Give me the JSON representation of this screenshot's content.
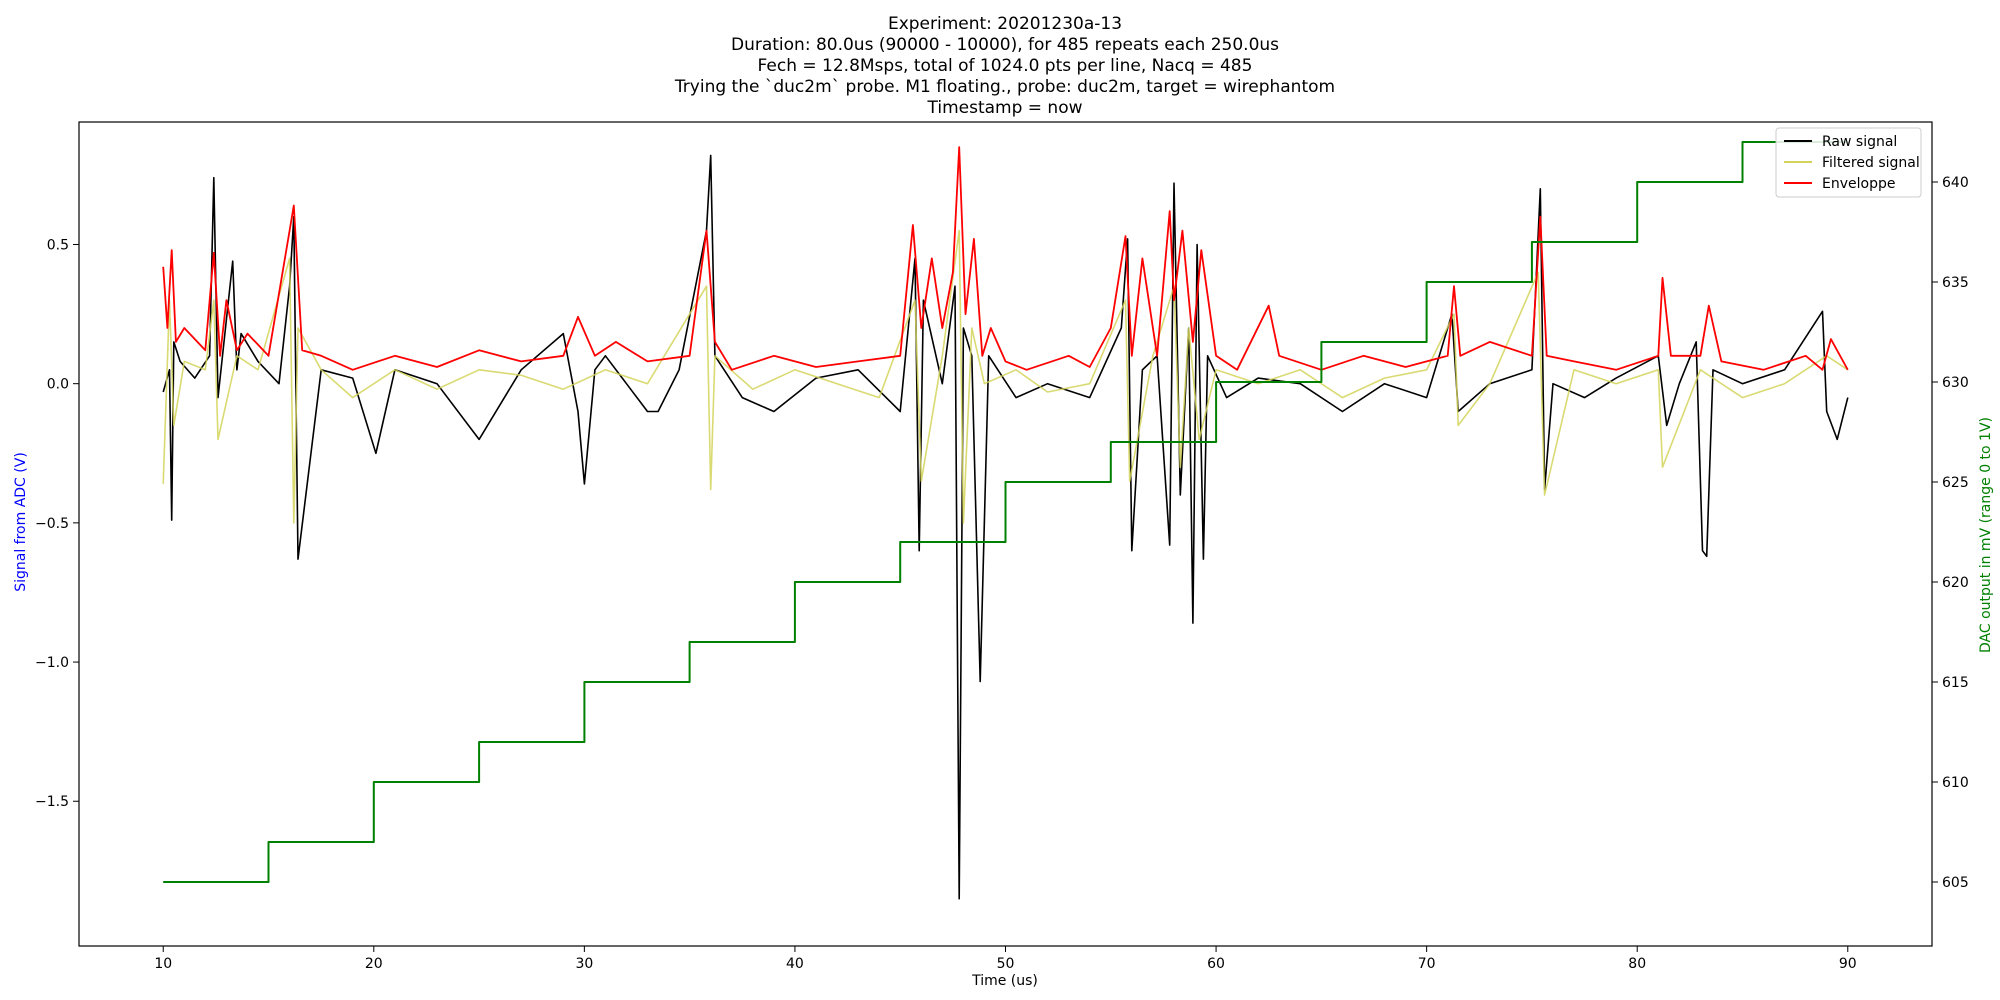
{
  "chart_data": {
    "type": "line",
    "title_lines": [
      "Experiment: 20201230a-13",
      "Duration: 80.0us (90000 - 10000), for 485 repeats each 250.0us",
      "Fech = 12.8Msps, total of 1024.0 pts per line, Nacq = 485",
      "Trying the `duc2m` probe. M1 floating., probe: duc2m, target = wirephantom",
      "Timestamp = now"
    ],
    "xlabel": "Time (us)",
    "ylabel": "Signal from ADC (V)",
    "ylabel_right": "DAC output in mV (range 0 to 1V)",
    "xlim": [
      6,
      94
    ],
    "ylim": [
      -2.02,
      0.94
    ],
    "ylim_right": [
      601.8,
      643.0
    ],
    "x_ticks": [
      10,
      20,
      30,
      40,
      50,
      60,
      70,
      80,
      90
    ],
    "y_ticks": [
      -1.5,
      -1.0,
      -0.5,
      0.0,
      0.5
    ],
    "y_tick_labels": [
      "−1.5",
      "−1.0",
      "−0.5",
      "0.0",
      "0.5"
    ],
    "y_right_ticks": [
      605,
      610,
      615,
      620,
      625,
      630,
      635,
      640
    ],
    "legend_position": "top-right",
    "colors": {
      "raw": "#000000",
      "filtered": "#d4d35a",
      "envelope": "#ff0000",
      "dac": "#008000",
      "left_label": "#0000ff",
      "right_label": "#008000"
    },
    "series": [
      {
        "name": "Raw signal",
        "axis": "left",
        "x": [
          10.0,
          10.3,
          10.4,
          10.5,
          10.8,
          11.5,
          12.2,
          12.4,
          12.6,
          13.3,
          13.5,
          13.7,
          14.5,
          15.5,
          16.0,
          16.2,
          16.4,
          17.5,
          19.0,
          20.1,
          21.0,
          23.0,
          25.0,
          27.0,
          29.0,
          29.7,
          30.0,
          30.5,
          31.0,
          32.0,
          33.0,
          33.5,
          34.5,
          35.8,
          36.0,
          36.2,
          37.5,
          39.0,
          41.0,
          43.0,
          45.0,
          45.7,
          45.9,
          46.1,
          47.0,
          47.6,
          47.8,
          48.0,
          48.4,
          48.8,
          49.2,
          50.5,
          52.0,
          54.0,
          55.5,
          55.8,
          56.0,
          56.5,
          57.2,
          57.8,
          58.0,
          58.3,
          58.7,
          58.9,
          59.1,
          59.4,
          59.6,
          60.5,
          62.0,
          64.0,
          66.0,
          68.0,
          70.0,
          71.2,
          71.5,
          73.0,
          75.0,
          75.4,
          75.6,
          76.0,
          77.5,
          79.0,
          81.0,
          81.4,
          82.0,
          82.8,
          83.1,
          83.3,
          83.6,
          85.0,
          87.0,
          88.8,
          89.0,
          89.5,
          90.0
        ],
        "values": [
          -0.03,
          0.05,
          -0.49,
          0.15,
          0.08,
          0.02,
          0.1,
          0.74,
          -0.05,
          0.44,
          0.05,
          0.18,
          0.08,
          0.0,
          0.35,
          0.6,
          -0.63,
          0.05,
          0.02,
          -0.25,
          0.05,
          0.0,
          -0.2,
          0.05,
          0.18,
          -0.1,
          -0.36,
          0.05,
          0.1,
          0.0,
          -0.1,
          -0.1,
          0.05,
          0.55,
          0.82,
          0.1,
          -0.05,
          -0.1,
          0.02,
          0.05,
          -0.1,
          0.45,
          -0.6,
          0.3,
          0.0,
          0.35,
          -1.85,
          0.2,
          0.1,
          -1.07,
          0.1,
          -0.05,
          0.0,
          -0.05,
          0.2,
          0.52,
          -0.6,
          0.05,
          0.1,
          -0.58,
          0.72,
          -0.4,
          0.2,
          -0.86,
          0.5,
          -0.63,
          0.1,
          -0.05,
          0.02,
          0.0,
          -0.1,
          0.0,
          -0.05,
          0.25,
          -0.1,
          0.0,
          0.05,
          0.7,
          -0.38,
          0.0,
          -0.05,
          0.02,
          0.1,
          -0.15,
          0.0,
          0.15,
          -0.6,
          -0.62,
          0.05,
          0.0,
          0.05,
          0.26,
          -0.1,
          -0.2,
          -0.05
        ]
      },
      {
        "name": "Filtered signal",
        "axis": "left",
        "x": [
          10.0,
          10.3,
          10.5,
          11.0,
          12.0,
          12.4,
          12.6,
          13.5,
          14.5,
          16.0,
          16.2,
          16.4,
          17.5,
          19.0,
          21.0,
          23.0,
          25.0,
          27.0,
          29.0,
          31.0,
          33.0,
          35.8,
          36.0,
          36.2,
          38.0,
          40.0,
          42.0,
          44.0,
          45.7,
          46.0,
          47.0,
          47.8,
          48.0,
          48.4,
          49.0,
          50.5,
          52.0,
          54.0,
          55.7,
          55.9,
          57.0,
          58.0,
          58.3,
          58.7,
          59.2,
          60.0,
          62.0,
          64.0,
          66.0,
          68.0,
          70.0,
          71.3,
          71.5,
          73.0,
          75.3,
          75.6,
          77.0,
          79.0,
          81.0,
          81.2,
          83.0,
          85.0,
          87.0,
          89.0,
          90.0
        ],
        "values": [
          -0.36,
          0.3,
          -0.15,
          0.08,
          0.05,
          0.3,
          -0.2,
          0.1,
          0.05,
          0.45,
          -0.5,
          0.2,
          0.05,
          -0.05,
          0.05,
          -0.02,
          0.05,
          0.03,
          -0.02,
          0.05,
          0.0,
          0.35,
          -0.38,
          0.1,
          -0.02,
          0.05,
          0.0,
          -0.05,
          0.3,
          -0.35,
          0.1,
          0.55,
          -0.5,
          0.2,
          0.0,
          0.05,
          -0.03,
          0.0,
          0.3,
          -0.35,
          0.1,
          0.35,
          -0.3,
          0.2,
          -0.2,
          0.05,
          0.0,
          0.05,
          -0.05,
          0.02,
          0.05,
          0.25,
          -0.15,
          0.0,
          0.4,
          -0.4,
          0.05,
          0.0,
          0.05,
          -0.3,
          0.05,
          -0.05,
          0.0,
          0.1,
          0.05
        ]
      },
      {
        "name": "Enveloppe",
        "axis": "left",
        "x": [
          10.0,
          10.2,
          10.4,
          10.6,
          11.0,
          12.0,
          12.4,
          12.7,
          13.0,
          13.5,
          14.0,
          15.0,
          16.0,
          16.2,
          16.6,
          17.5,
          19.0,
          21.0,
          23.0,
          25.0,
          27.0,
          29.0,
          29.7,
          30.5,
          31.5,
          33.0,
          35.0,
          35.8,
          36.2,
          37.0,
          39.0,
          41.0,
          43.0,
          45.0,
          45.6,
          46.0,
          46.5,
          47.0,
          47.5,
          47.8,
          48.1,
          48.5,
          48.9,
          49.3,
          50.0,
          51.0,
          53.0,
          54.0,
          55.0,
          55.7,
          56.0,
          56.5,
          57.2,
          57.8,
          58.0,
          58.4,
          58.9,
          59.3,
          60.0,
          61.0,
          62.5,
          63.0,
          65.0,
          67.0,
          69.0,
          71.0,
          71.3,
          71.6,
          73.0,
          75.0,
          75.4,
          75.7,
          77.0,
          79.0,
          81.0,
          81.2,
          81.6,
          83.0,
          83.4,
          84.0,
          86.0,
          88.0,
          88.8,
          89.2,
          90.0
        ],
        "values": [
          0.42,
          0.2,
          0.48,
          0.15,
          0.2,
          0.12,
          0.47,
          0.1,
          0.3,
          0.12,
          0.18,
          0.1,
          0.55,
          0.64,
          0.12,
          0.1,
          0.05,
          0.1,
          0.06,
          0.12,
          0.08,
          0.1,
          0.24,
          0.1,
          0.15,
          0.08,
          0.1,
          0.55,
          0.15,
          0.05,
          0.1,
          0.06,
          0.08,
          0.1,
          0.57,
          0.2,
          0.45,
          0.2,
          0.4,
          0.85,
          0.25,
          0.52,
          0.1,
          0.2,
          0.08,
          0.05,
          0.1,
          0.06,
          0.2,
          0.53,
          0.1,
          0.45,
          0.1,
          0.62,
          0.3,
          0.55,
          0.15,
          0.48,
          0.1,
          0.05,
          0.28,
          0.1,
          0.05,
          0.1,
          0.06,
          0.1,
          0.35,
          0.1,
          0.15,
          0.1,
          0.6,
          0.1,
          0.08,
          0.05,
          0.1,
          0.38,
          0.1,
          0.1,
          0.28,
          0.08,
          0.05,
          0.1,
          0.05,
          0.16,
          0.05
        ]
      },
      {
        "axis": "right",
        "step": true,
        "x": [
          10,
          15,
          20,
          25,
          30,
          35,
          40,
          45,
          50,
          55,
          60,
          65,
          70,
          75,
          80,
          85,
          90
        ],
        "values": [
          605,
          607,
          610,
          612,
          615,
          617,
          620,
          622,
          625,
          627,
          630,
          632,
          635,
          637,
          640,
          642,
          642
        ]
      }
    ]
  }
}
